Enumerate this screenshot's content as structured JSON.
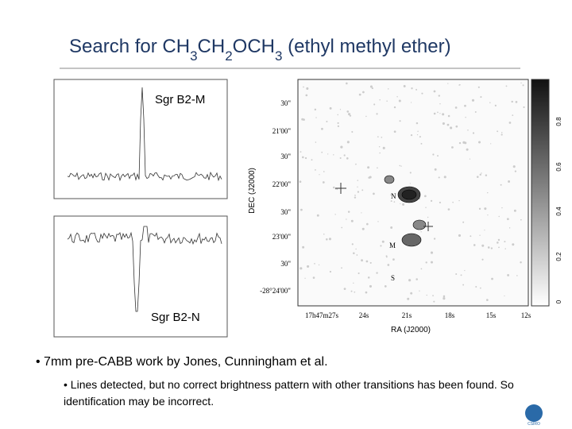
{
  "title": {
    "segments": [
      {
        "text": "Search for CH",
        "subscript": false
      },
      {
        "text": "3",
        "subscript": true
      },
      {
        "text": "CH",
        "subscript": false
      },
      {
        "text": "2",
        "subscript": true
      },
      {
        "text": "OCH",
        "subscript": false
      },
      {
        "text": "3",
        "subscript": true
      },
      {
        "text": " (ethyl methyl ether)",
        "subscript": false
      }
    ]
  },
  "panels": {
    "top_label": "Sgr B2-M",
    "bottom_label": "Sgr B2-N"
  },
  "map": {
    "dec_labels": [
      "30\"",
      "21'00\"",
      "30\"",
      "22'00\"",
      "30\"",
      "23'00\"",
      "30\"",
      "-28°24'00\""
    ],
    "dec_axis": "DEC (J2000)",
    "ra_labels": [
      "17h47m27s",
      "24s",
      "21s",
      "18s",
      "15s",
      "12s"
    ],
    "ra_axis": "RA (J2000)",
    "sources": [
      "N",
      "M",
      "S"
    ],
    "colorbar_labels": [
      "0",
      "0.2",
      "0.4",
      "0.6",
      "0.8"
    ]
  },
  "bullets": [
    {
      "text": "7mm pre-CABB work by Jones, Cunningham et al.",
      "sub": [
        "Lines detected, but no correct brightness pattern with other transitions has been found. So identification may be incorrect."
      ]
    }
  ],
  "logo": "CSIRO"
}
